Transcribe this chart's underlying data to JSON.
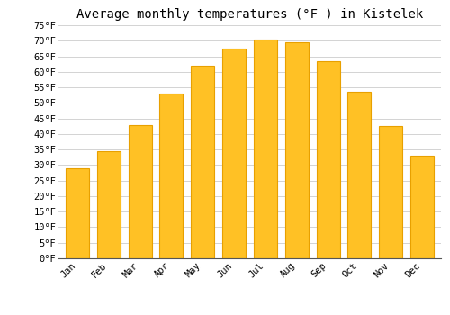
{
  "title": "Average monthly temperatures (°F ) in Kistelek",
  "months": [
    "Jan",
    "Feb",
    "Mar",
    "Apr",
    "May",
    "Jun",
    "Jul",
    "Aug",
    "Sep",
    "Oct",
    "Nov",
    "Dec"
  ],
  "values": [
    29,
    34.5,
    43,
    53,
    62,
    67.5,
    70.5,
    69.5,
    63.5,
    53.5,
    42.5,
    33
  ],
  "bar_color": "#FFC125",
  "bar_edge_color": "#E8A000",
  "background_color": "#FFFFFF",
  "grid_color": "#CCCCCC",
  "ylim": [
    0,
    75
  ],
  "yticks": [
    0,
    5,
    10,
    15,
    20,
    25,
    30,
    35,
    40,
    45,
    50,
    55,
    60,
    65,
    70,
    75
  ],
  "ylabel_suffix": "°F",
  "title_fontsize": 10,
  "tick_fontsize": 7.5,
  "tick_font": "monospace"
}
